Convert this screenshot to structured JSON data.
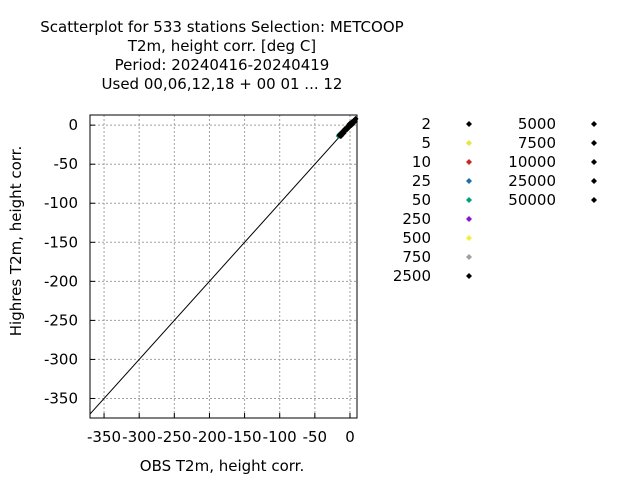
{
  "chart_data": {
    "type": "scatter",
    "title_lines": [
      "Scatterplot for  533 stations Selection: METCOOP",
      "T2m, height corr. [deg C]",
      "Period: 20240416-20240419",
      "Used  00,06,12,18 + 00 01 ... 12"
    ],
    "xlabel": "OBS T2m, height corr.",
    "ylabel": "Highres T2m, height corr.",
    "xlim": [
      -370,
      10
    ],
    "ylim": [
      -375,
      13
    ],
    "xticks": [
      -350,
      -300,
      -250,
      -200,
      -150,
      -100,
      -50,
      0
    ],
    "xtick_labels": [
      "-350",
      "-300",
      "-250",
      "-200",
      "-150",
      "-100",
      "-50",
      "0"
    ],
    "yticks": [
      0,
      -50,
      -100,
      -150,
      -200,
      -250,
      -300,
      -350
    ],
    "ytick_labels": [
      "0",
      "-50",
      "-100",
      "-150",
      "-200",
      "-250",
      "-300",
      "-350"
    ],
    "grid": true,
    "legend_placement": "right",
    "diagonal": {
      "x": [
        -370,
        10
      ],
      "y": [
        -370,
        10
      ]
    },
    "legend": [
      {
        "label": "2",
        "color": "#000000"
      },
      {
        "label": "5",
        "color": "#e6e63c"
      },
      {
        "label": "10",
        "color": "#c8281e"
      },
      {
        "label": "25",
        "color": "#1e6eaa"
      },
      {
        "label": "50",
        "color": "#00a078"
      },
      {
        "label": "250",
        "color": "#8c14c8"
      },
      {
        "label": "500",
        "color": "#f0f03c"
      },
      {
        "label": "750",
        "color": "#a0a0a0"
      },
      {
        "label": "2500",
        "color": "#000000"
      },
      {
        "label": "5000",
        "color": "#000000"
      },
      {
        "label": "7500",
        "color": "#000000"
      },
      {
        "label": "10000",
        "color": "#000000"
      },
      {
        "label": "25000",
        "color": "#000000"
      },
      {
        "label": "50000",
        "color": "#000000"
      }
    ],
    "series": [
      {
        "color": "#00a078",
        "points": [
          [
            -16,
            -14
          ],
          [
            -15,
            -12
          ],
          [
            -13,
            -11
          ],
          [
            -12,
            -13
          ]
        ]
      },
      {
        "color": "#1e6eaa",
        "points": [
          [
            -14,
            -12
          ],
          [
            -11,
            -9
          ],
          [
            -9,
            -8
          ],
          [
            -6,
            -5
          ]
        ]
      },
      {
        "color": "#8c14c8",
        "points": [
          [
            -13,
            -12
          ],
          [
            -10,
            -11
          ],
          [
            -8,
            -6
          ]
        ]
      },
      {
        "color": "#c8281e",
        "points": [
          [
            -11,
            -9
          ],
          [
            -7,
            -6
          ],
          [
            -4,
            -2
          ],
          [
            -2,
            -3
          ]
        ]
      },
      {
        "color": "#e6e63c",
        "points": [
          [
            -8,
            -9
          ],
          [
            -5,
            -3
          ],
          [
            -1,
            0
          ],
          [
            3,
            2
          ]
        ]
      },
      {
        "color": "#a0a0a0",
        "points": [
          [
            -12,
            -10
          ],
          [
            -6,
            -7
          ],
          [
            -2,
            -1
          ]
        ]
      },
      {
        "color": "#000000",
        "points": [
          [
            -15,
            -13
          ],
          [
            -13,
            -14
          ],
          [
            -12,
            -10
          ],
          [
            -10,
            -8
          ],
          [
            -9,
            -10
          ],
          [
            -8,
            -7
          ],
          [
            -7,
            -5
          ],
          [
            -6,
            -6
          ],
          [
            -5,
            -4
          ],
          [
            -4,
            -5
          ],
          [
            -3,
            -2
          ],
          [
            -2,
            -1
          ],
          [
            -1,
            -2
          ],
          [
            0,
            0
          ],
          [
            0,
            2
          ],
          [
            1,
            1
          ],
          [
            2,
            3
          ],
          [
            3,
            4
          ],
          [
            4,
            2
          ],
          [
            5,
            5
          ],
          [
            6,
            6
          ],
          [
            7,
            5
          ],
          [
            8,
            8
          ],
          [
            -3,
            -4
          ],
          [
            -1,
            1
          ],
          [
            2,
            0
          ]
        ]
      }
    ]
  }
}
